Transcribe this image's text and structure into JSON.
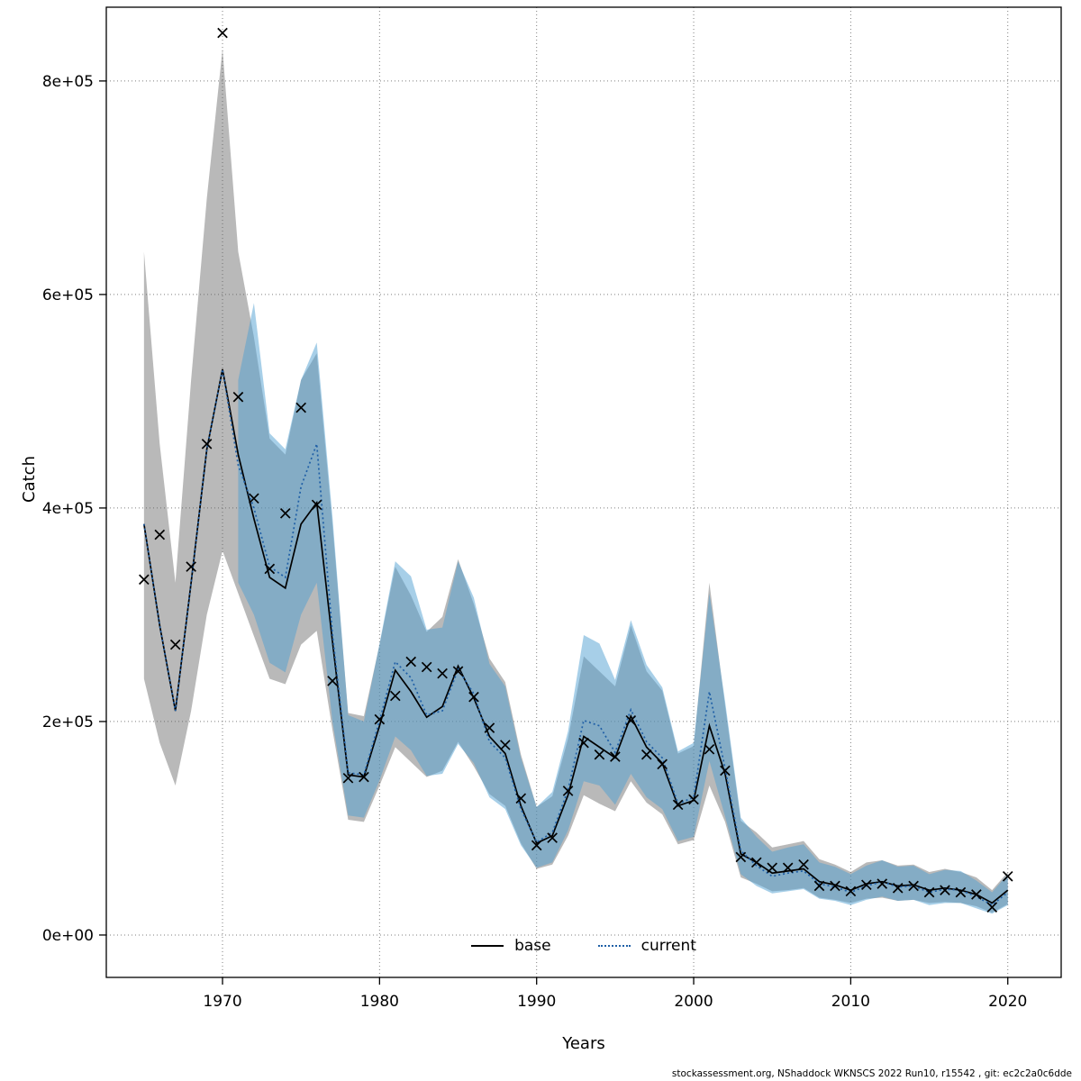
{
  "footer": {
    "text": "stockassessment.org, NShaddock WKNSCS 2022 Run10, r15542 , git: ec2c2a0c6dde"
  },
  "chart_data": {
    "type": "line",
    "title": "",
    "xlabel": "Years",
    "ylabel": "Catch",
    "xlim": [
      1962.6,
      2023.4
    ],
    "ylim": [
      -39700,
      869100
    ],
    "grid": "dotted",
    "legend_position": "bottom-center",
    "x_ticks": [
      1970,
      1980,
      1990,
      2000,
      2010,
      2020
    ],
    "y_ticks": [
      {
        "value": 0,
        "label": "0e+00"
      },
      {
        "value": 200000,
        "label": "2e+05"
      },
      {
        "value": 400000,
        "label": "4e+05"
      },
      {
        "value": 600000,
        "label": "6e+05"
      },
      {
        "value": 800000,
        "label": "8e+05"
      }
    ],
    "years": [
      1965,
      1966,
      1967,
      1968,
      1969,
      1970,
      1971,
      1972,
      1973,
      1974,
      1975,
      1976,
      1977,
      1978,
      1979,
      1980,
      1981,
      1982,
      1983,
      1984,
      1985,
      1986,
      1987,
      1988,
      1989,
      1990,
      1991,
      1992,
      1993,
      1994,
      1995,
      1996,
      1997,
      1998,
      1999,
      2000,
      2001,
      2002,
      2003,
      2004,
      2005,
      2006,
      2007,
      2008,
      2009,
      2010,
      2011,
      2012,
      2013,
      2014,
      2015,
      2016,
      2017,
      2018,
      2019,
      2020
    ],
    "series": [
      {
        "name": "base",
        "style": "solid",
        "color": "#000000",
        "band_color": "rgba(100,100,100,0.45)",
        "values": [
          385000,
          290000,
          210000,
          330000,
          455000,
          530000,
          450000,
          390000,
          335000,
          325000,
          385000,
          405000,
          275000,
          150000,
          148000,
          196000,
          248000,
          228000,
          204000,
          214000,
          252000,
          222000,
          186000,
          170000,
          121000,
          86000,
          93000,
          131000,
          186000,
          176000,
          166000,
          205000,
          176000,
          161000,
          121000,
          126000,
          196000,
          151000,
          76000,
          68000,
          58000,
          60000,
          62000,
          50000,
          47000,
          42000,
          48000,
          50000,
          46000,
          47000,
          42000,
          44000,
          42000,
          38000,
          30000,
          42000
        ],
        "lower": [
          240000,
          180000,
          140000,
          210000,
          300000,
          360000,
          320000,
          280000,
          240000,
          235000,
          272000,
          285000,
          192000,
          108000,
          106000,
          140000,
          176000,
          162000,
          148000,
          154000,
          181000,
          158000,
          132000,
          121000,
          86000,
          62000,
          66000,
          93000,
          131000,
          123000,
          116000,
          144000,
          124000,
          113000,
          85000,
          89000,
          140000,
          106000,
          54000,
          48000,
          41000,
          42000,
          44000,
          35000,
          33000,
          30000,
          34000,
          35000,
          32000,
          33000,
          30000,
          31000,
          30000,
          27000,
          21000,
          29000
        ],
        "upper": [
          640000,
          460000,
          330000,
          520000,
          690000,
          830000,
          640000,
          560000,
          465000,
          450000,
          520000,
          545000,
          385000,
          208000,
          205000,
          272000,
          345000,
          318000,
          284000,
          298000,
          352000,
          310000,
          259000,
          237000,
          169000,
          120000,
          130000,
          184000,
          261000,
          247000,
          233000,
          290000,
          247000,
          229000,
          170000,
          177000,
          330000,
          215000,
          107000,
          96000,
          82000,
          85000,
          88000,
          71000,
          66000,
          59000,
          68000,
          70000,
          65000,
          66000,
          59000,
          62000,
          59000,
          54000,
          42000,
          59000
        ]
      },
      {
        "name": "current",
        "style": "dotted",
        "color": "#1f5fa6",
        "band_color": "rgba(80,160,210,0.5)",
        "values": [
          385000,
          290000,
          210000,
          330000,
          455000,
          530000,
          440000,
          400000,
          345000,
          335000,
          420000,
          460000,
          282000,
          152000,
          150000,
          201000,
          256000,
          241000,
          206000,
          210000,
          249000,
          226000,
          181000,
          166000,
          118000,
          87000,
          96000,
          136000,
          201000,
          196000,
          171000,
          211000,
          181000,
          166000,
          123000,
          129000,
          228000,
          156000,
          79000,
          65000,
          55000,
          58000,
          60000,
          48000,
          45000,
          40000,
          46000,
          50000,
          45000,
          46000,
          40000,
          43000,
          42000,
          36000,
          28000,
          40000
        ],
        "lower": [
          null,
          null,
          null,
          null,
          null,
          null,
          330000,
          300000,
          255000,
          246000,
          300000,
          330000,
          200000,
          112000,
          110000,
          145000,
          186000,
          173000,
          149000,
          151000,
          179000,
          161000,
          129000,
          118000,
          84000,
          63000,
          68000,
          98000,
          144000,
          140000,
          122000,
          151000,
          129000,
          118000,
          88000,
          92000,
          163000,
          111000,
          57000,
          46000,
          39000,
          41000,
          43000,
          34000,
          32000,
          28000,
          33000,
          36000,
          32000,
          33000,
          28000,
          30000,
          30000,
          25000,
          20000,
          28000
        ],
        "upper": [
          null,
          null,
          null,
          null,
          null,
          null,
          520000,
          592000,
          470000,
          455000,
          520000,
          555000,
          392000,
          206000,
          200000,
          273000,
          350000,
          336000,
          286000,
          288000,
          350000,
          316000,
          254000,
          233000,
          166000,
          120000,
          134000,
          191000,
          281000,
          273000,
          239000,
          295000,
          253000,
          232000,
          172000,
          180000,
          320000,
          219000,
          110000,
          92000,
          78000,
          82000,
          85000,
          68000,
          64000,
          57000,
          65000,
          70000,
          64000,
          65000,
          57000,
          61000,
          60000,
          51000,
          40000,
          57000
        ]
      }
    ],
    "observations": {
      "marker": "x",
      "color": "#000000",
      "values": [
        333000,
        375000,
        272000,
        345000,
        460000,
        845000,
        504000,
        409000,
        343000,
        395000,
        494000,
        403000,
        238000,
        147000,
        148000,
        202000,
        224000,
        256000,
        251000,
        245000,
        247000,
        223000,
        194000,
        178000,
        128000,
        84000,
        91000,
        135000,
        180000,
        169000,
        167000,
        201000,
        169000,
        160000,
        122000,
        127000,
        174000,
        154000,
        73000,
        68000,
        63000,
        63000,
        66000,
        46000,
        46000,
        41000,
        47000,
        48000,
        44000,
        46000,
        40000,
        42000,
        40000,
        38000,
        26000,
        55000
      ]
    }
  }
}
